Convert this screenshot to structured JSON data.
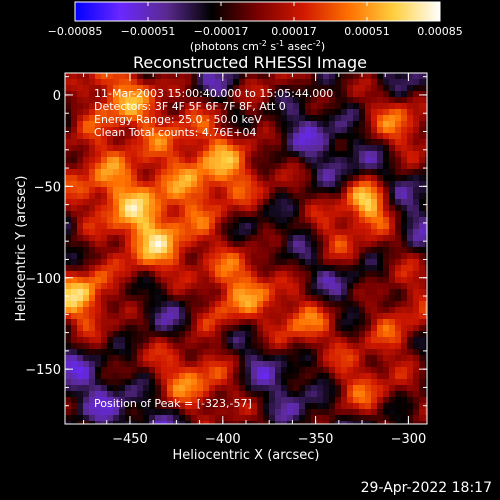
{
  "chart_data": {
    "type": "heatmap",
    "title": "Reconstructed RHESSI Image",
    "xlabel": "Heliocentric X (arcsec)",
    "ylabel": "Heliocentric Y (arcsec)",
    "xlim": [
      -485,
      -290
    ],
    "ylim": [
      -180,
      12
    ],
    "xticks": [
      -450,
      -400,
      -350,
      -300
    ],
    "xtick_labels": [
      "-450",
      "-400",
      "-350",
      "-300"
    ],
    "yticks": [
      0,
      -50,
      -100,
      -150
    ],
    "ytick_labels": [
      "0",
      "-50",
      "-100",
      "-150"
    ],
    "colorbar": {
      "ticks": [
        -0.00085,
        -0.00051,
        -0.00017,
        0.00017,
        0.00051,
        0.00085
      ],
      "tick_labels": [
        "-0.00085",
        "-0.00051",
        "-0.00017",
        "0.00017",
        "0.00051",
        "0.00085"
      ],
      "units_base": "(photons cm",
      "units_sup1": "-2",
      "units_mid": " s",
      "units_sup2": "-1",
      "units_end": " asec",
      "units_sup3": "-2",
      "units_close": ")",
      "stops": [
        "#0000ff",
        "#6a28ff",
        "#5a2a90",
        "#000000",
        "#7a0000",
        "#d01800",
        "#ff7000",
        "#ffd040",
        "#ffffff"
      ],
      "range": [
        -0.00085,
        0.00085
      ]
    },
    "annotations": [
      "11-Mar-2003 15:00:40.000 to 15:05:44.000",
      "Detectors: 3F 4F 5F 6F 7F 8F, Att 0",
      "Energy Range: 25.0 - 50.0 keV",
      "Clean     Total counts: 4.76E+04"
    ],
    "peak_label": "Position of Peak = [-323,-57]",
    "peak": [
      -323,
      -57
    ],
    "total_counts": 47600,
    "energy_range_kev": [
      25.0,
      50.0
    ]
  },
  "footer": {
    "timestamp": "29-Apr-2022 18:17"
  }
}
